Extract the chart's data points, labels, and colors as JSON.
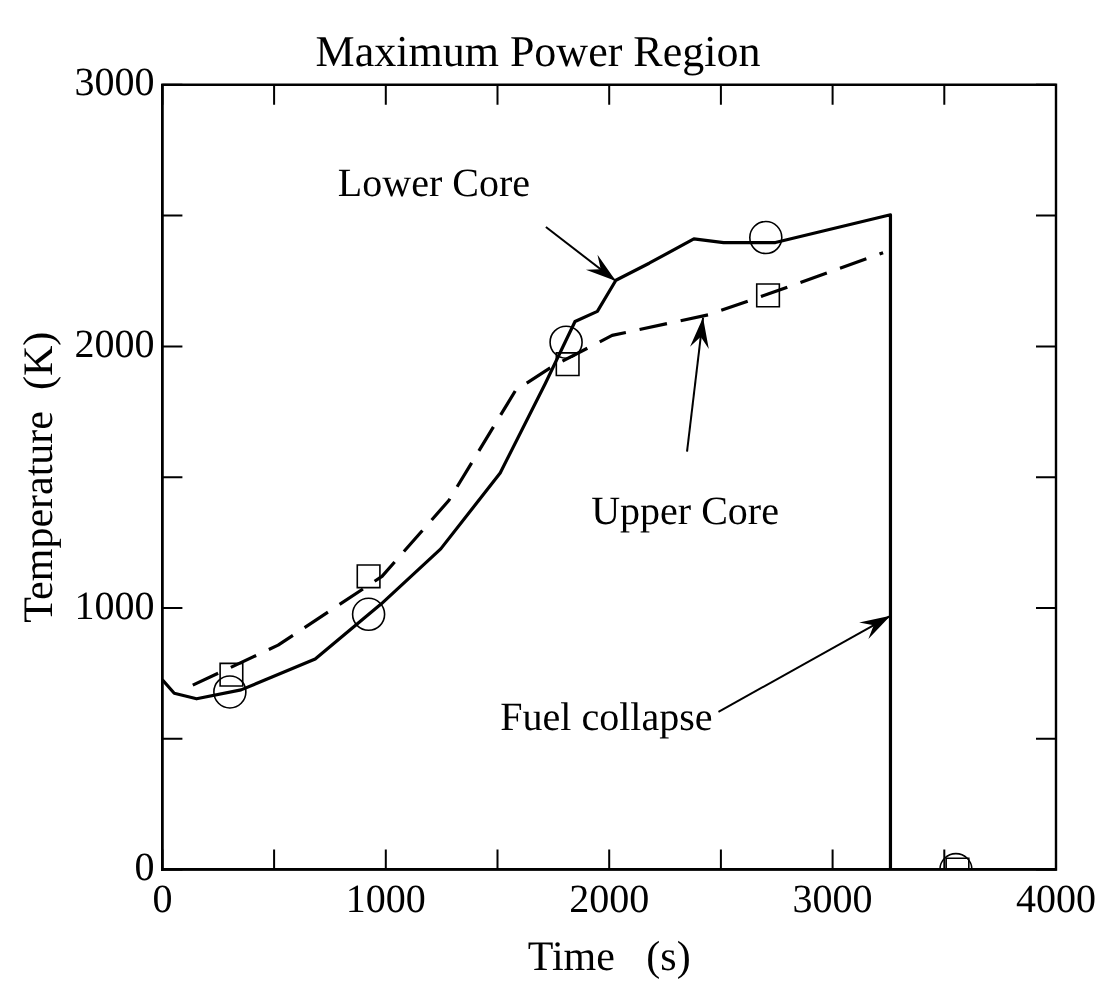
{
  "chart_data": {
    "type": "line",
    "title": "Maximum Power Region",
    "xlabel": "Time   (s)",
    "ylabel": "Temperature  (K)",
    "xlim": [
      0,
      4000
    ],
    "xticks": [
      0,
      {
        "value": 500,
        "label": null
      },
      1000,
      {
        "value": 1500,
        "label": null
      },
      2000,
      {
        "value": 2500,
        "label": null
      },
      3000,
      {
        "value": 3500,
        "label": null
      },
      4000
    ],
    "ylim": [
      0,
      3000
    ],
    "yticks": [
      0,
      {
        "value": 500,
        "label": null
      },
      1000,
      {
        "value": 1500,
        "label": null
      },
      2000,
      {
        "value": 2500,
        "label": null
      },
      3000
    ],
    "grid": false,
    "legend": false,
    "series": [
      {
        "type": "line",
        "color": "#000000",
        "line_style": "solid",
        "marker": "none",
        "x": [
          0,
          53,
          153,
          352,
          684,
          980,
          1246,
          1512,
          1714,
          1847,
          1947,
          2030,
          2179,
          2379,
          2512,
          2744,
          3259,
          3259
        ],
        "values": [
          726,
          674,
          653,
          687,
          805,
          1016,
          1226,
          1516,
          1858,
          2095,
          2134,
          2253,
          2318,
          2411,
          2397,
          2397,
          2503,
          0
        ]
      },
      {
        "type": "line",
        "color": "#000000",
        "line_style": "dashed",
        "marker": "none",
        "x": [
          136,
          518,
          983,
          1282,
          1581,
          1747,
          2013,
          2445,
          2711,
          3226
        ],
        "values": [
          705,
          858,
          1121,
          1411,
          1832,
          1924,
          2042,
          2121,
          2200,
          2358
        ]
      },
      {
        "type": "scatter",
        "color": "#000000",
        "marker": "circle",
        "x": [
          302,
          923,
          1807,
          2701,
          3552
        ],
        "values": [
          679,
          976,
          2016,
          2416,
          0
        ]
      },
      {
        "type": "scatter",
        "color": "#000000",
        "marker": "square",
        "x": [
          309,
          923,
          1814,
          2711,
          3559
        ],
        "values": [
          745,
          1121,
          1932,
          2195,
          0
        ]
      }
    ],
    "annotations": [
      {
        "text": "Lower Core",
        "x": 2030,
        "y": 2250
      },
      {
        "text": "Upper Core",
        "x": 2420,
        "y": 2110
      },
      {
        "text": "Fuel collapse",
        "x": 3259,
        "y": 970
      }
    ]
  }
}
